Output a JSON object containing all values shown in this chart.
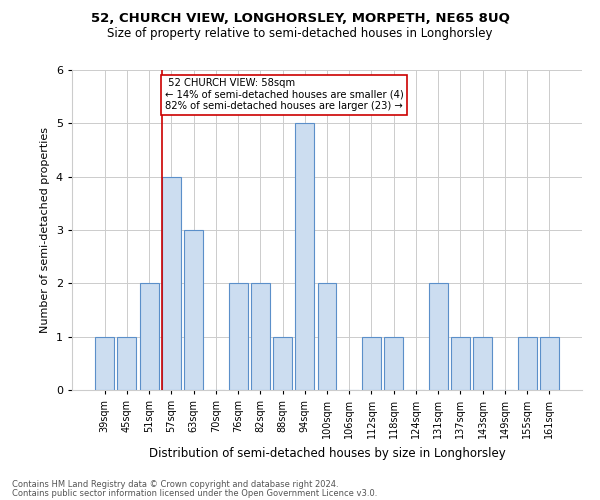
{
  "title1": "52, CHURCH VIEW, LONGHORSLEY, MORPETH, NE65 8UQ",
  "title2": "Size of property relative to semi-detached houses in Longhorsley",
  "xlabel": "Distribution of semi-detached houses by size in Longhorsley",
  "ylabel": "Number of semi-detached properties",
  "footnote1": "Contains HM Land Registry data © Crown copyright and database right 2024.",
  "footnote2": "Contains public sector information licensed under the Open Government Licence v3.0.",
  "categories": [
    "39sqm",
    "45sqm",
    "51sqm",
    "57sqm",
    "63sqm",
    "70sqm",
    "76sqm",
    "82sqm",
    "88sqm",
    "94sqm",
    "100sqm",
    "106sqm",
    "112sqm",
    "118sqm",
    "124sqm",
    "131sqm",
    "137sqm",
    "143sqm",
    "149sqm",
    "155sqm",
    "161sqm"
  ],
  "values": [
    1,
    1,
    2,
    4,
    3,
    0,
    2,
    2,
    1,
    5,
    2,
    0,
    1,
    1,
    0,
    2,
    1,
    1,
    0,
    1,
    1
  ],
  "bar_color": "#ccddf0",
  "bar_edge_color": "#5b8fc9",
  "property_label": "52 CHURCH VIEW: 58sqm",
  "smaller_pct": "14%",
  "smaller_count": 4,
  "larger_pct": "82%",
  "larger_count": 23,
  "red_line_color": "#cc0000",
  "annotation_box_color": "#ffffff",
  "annotation_box_edge": "#cc0000",
  "ylim": [
    0,
    6
  ],
  "yticks": [
    0,
    1,
    2,
    3,
    4,
    5,
    6
  ],
  "background_color": "#ffffff",
  "grid_color": "#cccccc",
  "red_line_index": 2.6
}
